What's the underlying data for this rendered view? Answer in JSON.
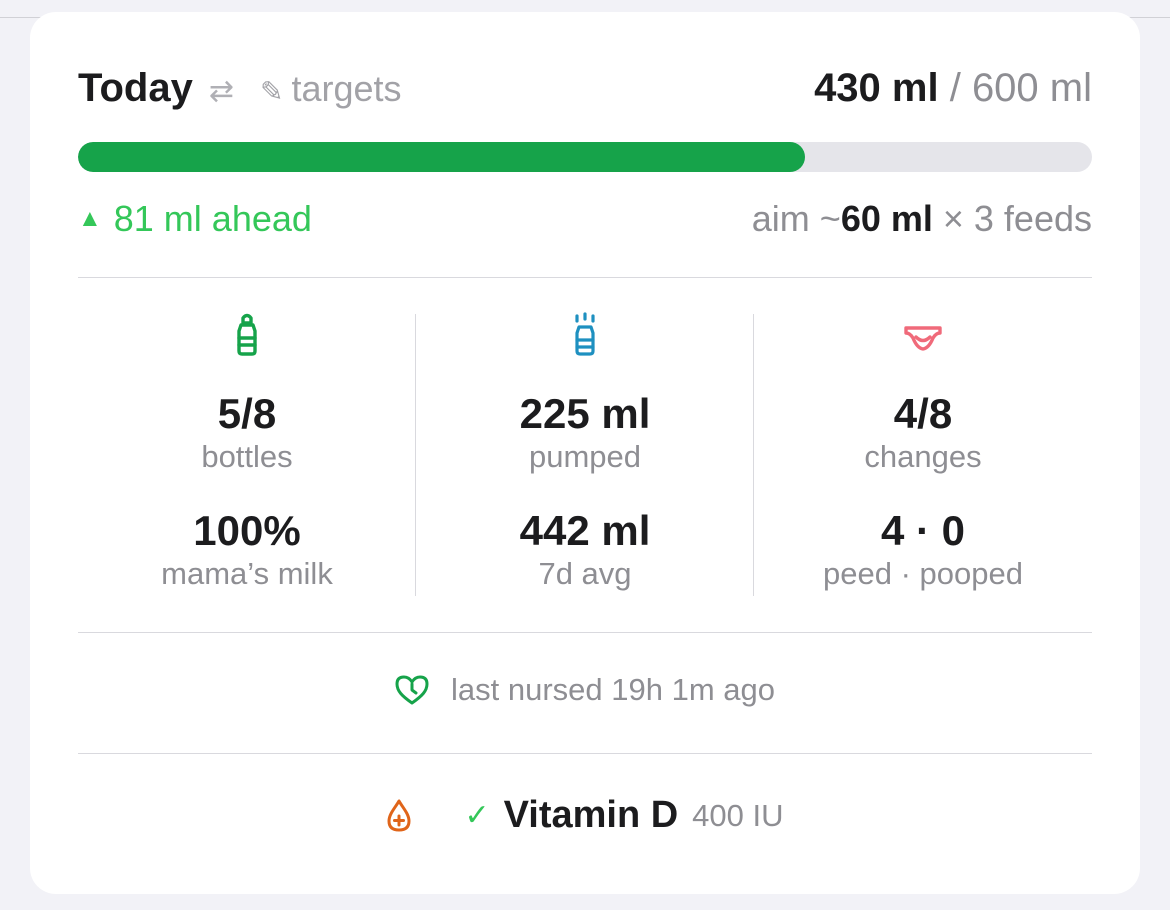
{
  "header": {
    "title": "Today",
    "swap_icon": "⇄",
    "targets_icon": "✎",
    "targets_label": "targets",
    "consumed": "430 ml",
    "separator": " / ",
    "target": "600 ml"
  },
  "progress": {
    "fraction": 0.717,
    "color": "#16a34a"
  },
  "status": {
    "ahead_icon": "▲",
    "ahead_text": "81 ml ahead",
    "aim_prefix": "aim ~",
    "aim_amount": "60 ml",
    "aim_suffix": " × 3 feeds"
  },
  "stats": [
    {
      "icon": "bottle-icon",
      "color": "#16a34a",
      "primary_value": "5/8",
      "primary_label": "bottles",
      "secondary_value": "100%",
      "secondary_label": "mama’s milk"
    },
    {
      "icon": "pump-icon",
      "color": "#1e90c0",
      "primary_value": "225 ml",
      "primary_label": "pumped",
      "secondary_value": "442 ml",
      "secondary_label": "7d avg"
    },
    {
      "icon": "diaper-icon",
      "color": "#f06a7a",
      "primary_value": "4/8",
      "primary_label": "changes",
      "secondary_value": "4 · 0",
      "secondary_label": "peed · pooped"
    }
  ],
  "nursed": {
    "icon": "heart-clock-icon",
    "text": "last nursed 19h 1m ago"
  },
  "vitamin": {
    "icon": "drop-plus-icon",
    "check_icon": "✓",
    "name": "Vitamin D",
    "dose": "400 IU"
  }
}
